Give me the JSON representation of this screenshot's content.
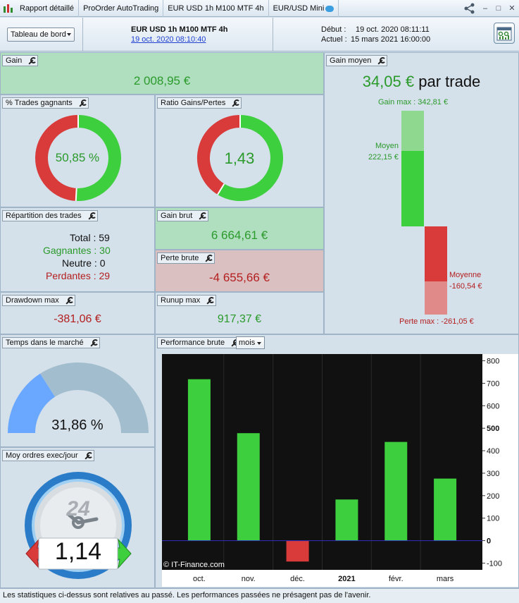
{
  "titlebar": {
    "tabs": [
      {
        "label": "Rapport détaillé"
      },
      {
        "label": "ProOrder AutoTrading"
      },
      {
        "label": "EUR USD 1h M100 MTF 4h"
      },
      {
        "label": "EUR/USD Mini"
      }
    ]
  },
  "header": {
    "dashboard_select": "Tableau de bord",
    "strategy_title": "EUR USD 1h M100 MTF 4h",
    "strategy_date_link": "19 oct. 2020 08:10:40",
    "debut_label": "Début :",
    "debut_value": "19 oct. 2020 08:11:11",
    "actuel_label": "Actuel :",
    "actuel_value": "15 mars 2021 16:00:00"
  },
  "gain": {
    "label": "Gain",
    "value": "2 008,95 €"
  },
  "gain_moyen": {
    "label": "Gain moyen",
    "value": "34,05 €",
    "suffix": "par trade",
    "gain_max": "Gain max : 342,81 €",
    "moyen_label": "Moyen",
    "moyen_value": "222,15 €",
    "moyenne_label": "Moyenne",
    "moyenne_value": "-160,54 €",
    "perte_max": "Perte max : -261,05 €"
  },
  "trades_gagnants": {
    "label": "% Trades gagnants",
    "value": "50,85 %",
    "fraction": 0.5085
  },
  "ratio": {
    "label": "Ratio Gains/Pertes",
    "value": "1,43",
    "fraction": 0.588
  },
  "repartition": {
    "label": "Répartition des trades",
    "total": "Total : 59",
    "gagnantes": "Gagnantes : 30",
    "neutre": "Neutre : 0",
    "perdantes": "Perdantes : 29"
  },
  "gain_brut": {
    "label": "Gain brut",
    "value": "6 664,61 €"
  },
  "perte_brute": {
    "label": "Perte brute",
    "value": "-4 655,66 €"
  },
  "drawdown": {
    "label": "Drawdown max",
    "value": "-381,06 €"
  },
  "runup": {
    "label": "Runup max",
    "value": "917,37 €"
  },
  "temps_marche": {
    "label": "Temps dans le marché",
    "value": "31,86 %",
    "fraction": 0.3186
  },
  "ordres": {
    "label": "Moy ordres exec/jour",
    "value": "1,14",
    "clock_number": "24"
  },
  "performance": {
    "label": "Performance brute",
    "period_select": "mois",
    "watermark": "© IT-Finance.com"
  },
  "chart_data": {
    "type": "bar",
    "categories": [
      "oct.",
      "nov.",
      "déc.",
      "2021",
      "févr.",
      "mars"
    ],
    "x_labels": [
      "oct.",
      "nov.",
      "déc.",
      "2021",
      "févr.",
      "mars"
    ],
    "values": [
      718,
      478,
      -93,
      183,
      439,
      276
    ],
    "bar_colors": {
      "positive": "#3ecf3e",
      "negative": "#d93a3a"
    },
    "ylim": [
      -130,
      830
    ],
    "yticks": [
      800,
      700,
      600,
      500,
      400,
      300,
      200,
      100,
      0,
      -100
    ],
    "background": "#111111",
    "zero_line_color": "#3030c0"
  },
  "footer": {
    "text": "Les statistiques ci-dessus sont relatives au passé. Les performances passées ne présagent pas de l'avenir."
  }
}
